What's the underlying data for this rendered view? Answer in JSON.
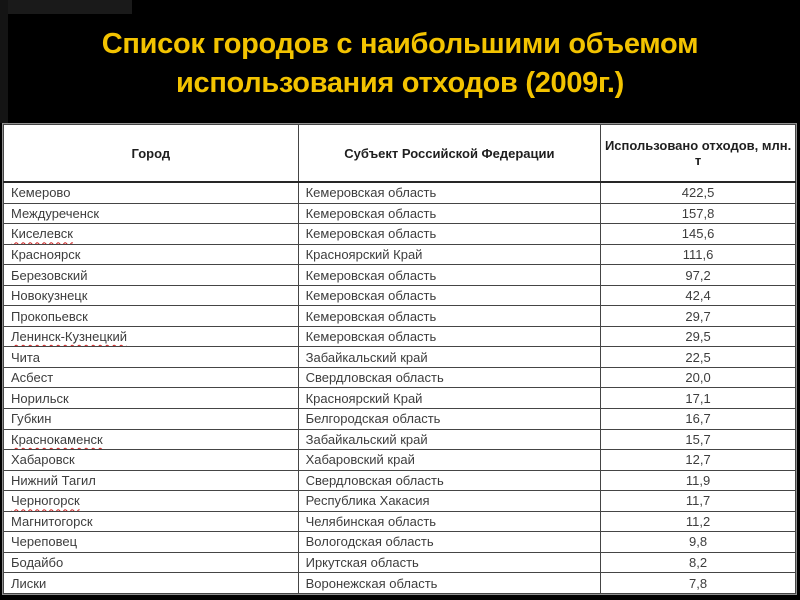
{
  "slide": {
    "title_lines": [
      "Список городов с наибольшими объемом",
      "использования отходов (2009г.)"
    ]
  },
  "table": {
    "headers": {
      "city": "Город",
      "region": "Субъект Российской Федерации",
      "value": "Использовано отходов, млн. т"
    },
    "rows": [
      {
        "city": "Кемерово",
        "region": "Кемеровская область",
        "value": "422,5",
        "spellcheck_underline": false
      },
      {
        "city": "Междуреченск",
        "region": "Кемеровская область",
        "value": "157,8",
        "spellcheck_underline": false
      },
      {
        "city": "Киселевск",
        "region": "Кемеровская область",
        "value": "145,6",
        "spellcheck_underline": true
      },
      {
        "city": "Красноярск",
        "region": "Красноярский Край",
        "value": "111,6",
        "spellcheck_underline": false
      },
      {
        "city": "Березовский",
        "region": "Кемеровская область",
        "value": "97,2",
        "spellcheck_underline": false
      },
      {
        "city": "Новокузнецк",
        "region": "Кемеровская область",
        "value": "42,4",
        "spellcheck_underline": false
      },
      {
        "city": "Прокопьевск",
        "region": "Кемеровская область",
        "value": "29,7",
        "spellcheck_underline": false
      },
      {
        "city": "Ленинск-Кузнецкий",
        "region": "Кемеровская область",
        "value": "29,5",
        "spellcheck_underline": true
      },
      {
        "city": "Чита",
        "region": "Забайкальский край",
        "value": "22,5",
        "spellcheck_underline": false
      },
      {
        "city": "Асбест",
        "region": "Свердловская область",
        "value": "20,0",
        "spellcheck_underline": false
      },
      {
        "city": "Норильск",
        "region": "Красноярский Край",
        "value": "17,1",
        "spellcheck_underline": false
      },
      {
        "city": "Губкин",
        "region": "Белгородская область",
        "value": "16,7",
        "spellcheck_underline": false
      },
      {
        "city": "Краснокаменск",
        "region": "Забайкальский край",
        "value": "15,7",
        "spellcheck_underline": true
      },
      {
        "city": "Хабаровск",
        "region": "Хабаровский край",
        "value": "12,7",
        "spellcheck_underline": false
      },
      {
        "city": "Нижний Тагил",
        "region": "Свердловская область",
        "value": "11,9",
        "spellcheck_underline": false
      },
      {
        "city": "Черногорск",
        "region": "Республика Хакасия",
        "value": "11,7",
        "spellcheck_underline": true
      },
      {
        "city": "Магнитогорск",
        "region": "Челябинская область",
        "value": "11,2",
        "spellcheck_underline": false
      },
      {
        "city": "Череповец",
        "region": "Вологодская область",
        "value": "9,8",
        "spellcheck_underline": false
      },
      {
        "city": "Бодайбо",
        "region": "Иркутская область",
        "value": "8,2",
        "spellcheck_underline": false
      },
      {
        "city": "Лиски",
        "region": "Воронежская область",
        "value": "7,8",
        "spellcheck_underline": false
      }
    ]
  },
  "colors": {
    "background": "#000000",
    "title_color": "#F3C300",
    "table_bg": "#FFFFFF",
    "header_text": "#1F1F1F",
    "cell_text": "#3D3D3D",
    "grid_line": "#454545",
    "spell_underline": "#CC2222"
  }
}
